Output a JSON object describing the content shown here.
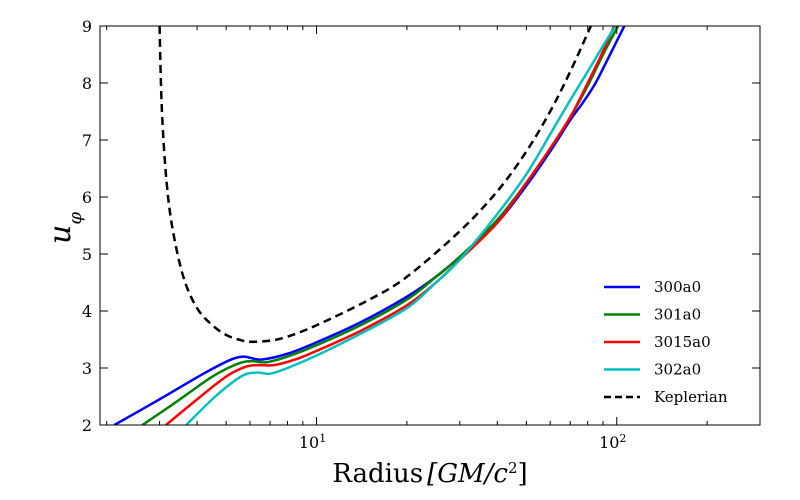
{
  "chart_data": {
    "type": "line",
    "xscale": "log",
    "xlim": [
      1.9,
      300
    ],
    "ylim": [
      2,
      9
    ],
    "xlabel_prefix": "Radius",
    "xlabel_units": "[GM/c",
    "xlabel_sup": "2",
    "xlabel_close": "]",
    "ylabel_main": "u",
    "ylabel_sub": "φ",
    "x_ticks": [
      {
        "value": 10,
        "base": "10",
        "exp": "1"
      },
      {
        "value": 100,
        "base": "10",
        "exp": "2"
      }
    ],
    "y_ticks": [
      {
        "value": 2,
        "label": "2"
      },
      {
        "value": 3,
        "label": "3"
      },
      {
        "value": 4,
        "label": "4"
      },
      {
        "value": 5,
        "label": "5"
      },
      {
        "value": 6,
        "label": "6"
      },
      {
        "value": 7,
        "label": "7"
      },
      {
        "value": 8,
        "label": "8"
      },
      {
        "value": 9,
        "label": "9"
      }
    ],
    "legend_position": "lower-right",
    "series": [
      {
        "name": "300a0",
        "color": "#0000ff",
        "dash": "",
        "x": [
          2.12,
          3.0,
          4.2,
          5.2,
          5.7,
          6.0,
          6.6,
          8.0,
          10,
          14,
          20,
          25,
          30,
          40,
          50,
          60,
          70,
          77,
          85,
          95,
          106
        ],
        "y": [
          2.0,
          2.45,
          2.9,
          3.15,
          3.2,
          3.18,
          3.15,
          3.25,
          3.45,
          3.8,
          4.25,
          4.6,
          4.95,
          5.55,
          6.2,
          6.8,
          7.35,
          7.65,
          8.0,
          8.5,
          9.0
        ]
      },
      {
        "name": "301a0",
        "color": "#008000",
        "dash": "",
        "x": [
          2.63,
          3.4,
          4.5,
          5.5,
          6.1,
          6.8,
          8.0,
          10,
          14,
          20,
          25,
          30,
          40,
          50,
          60,
          70,
          80,
          90,
          101
        ],
        "y": [
          2.0,
          2.4,
          2.85,
          3.08,
          3.12,
          3.1,
          3.2,
          3.4,
          3.75,
          4.2,
          4.6,
          4.95,
          5.6,
          6.25,
          6.85,
          7.4,
          7.95,
          8.5,
          9.0
        ]
      },
      {
        "name": "3015a0",
        "color": "#ff0000",
        "dash": "",
        "x": [
          3.15,
          4.0,
          5.0,
          5.8,
          6.4,
          7.2,
          8.5,
          10,
          14,
          20,
          25,
          30,
          40,
          50,
          60,
          70,
          80,
          89,
          98
        ],
        "y": [
          2.0,
          2.45,
          2.85,
          3.02,
          3.05,
          3.05,
          3.15,
          3.3,
          3.65,
          4.1,
          4.5,
          4.9,
          5.55,
          6.25,
          6.85,
          7.4,
          8.0,
          8.5,
          9.0
        ]
      },
      {
        "name": "302a0",
        "color": "#00bfbf",
        "dash": "",
        "x": [
          3.68,
          4.6,
          5.6,
          6.3,
          7.0,
          8.0,
          10,
          14,
          20,
          25,
          30,
          40,
          50,
          60,
          70,
          80,
          90,
          99
        ],
        "y": [
          2.0,
          2.5,
          2.85,
          2.92,
          2.9,
          3.0,
          3.22,
          3.6,
          4.05,
          4.5,
          4.9,
          5.7,
          6.4,
          7.1,
          7.7,
          8.2,
          8.65,
          9.0
        ]
      },
      {
        "name": "Keplerian",
        "color": "#000000",
        "dash": "8,5",
        "x": [
          3.0,
          3.05,
          3.15,
          3.3,
          3.6,
          4.0,
          4.5,
          5.0,
          5.5,
          6.0,
          7.0,
          8.0,
          10,
          15,
          20,
          30,
          40,
          50,
          60,
          70,
          82
        ],
        "y": [
          9.0,
          7.6,
          6.4,
          5.5,
          4.6,
          4.05,
          3.75,
          3.58,
          3.5,
          3.46,
          3.48,
          3.55,
          3.75,
          4.2,
          4.6,
          5.4,
          6.1,
          6.8,
          7.5,
          8.2,
          9.0
        ]
      }
    ]
  }
}
